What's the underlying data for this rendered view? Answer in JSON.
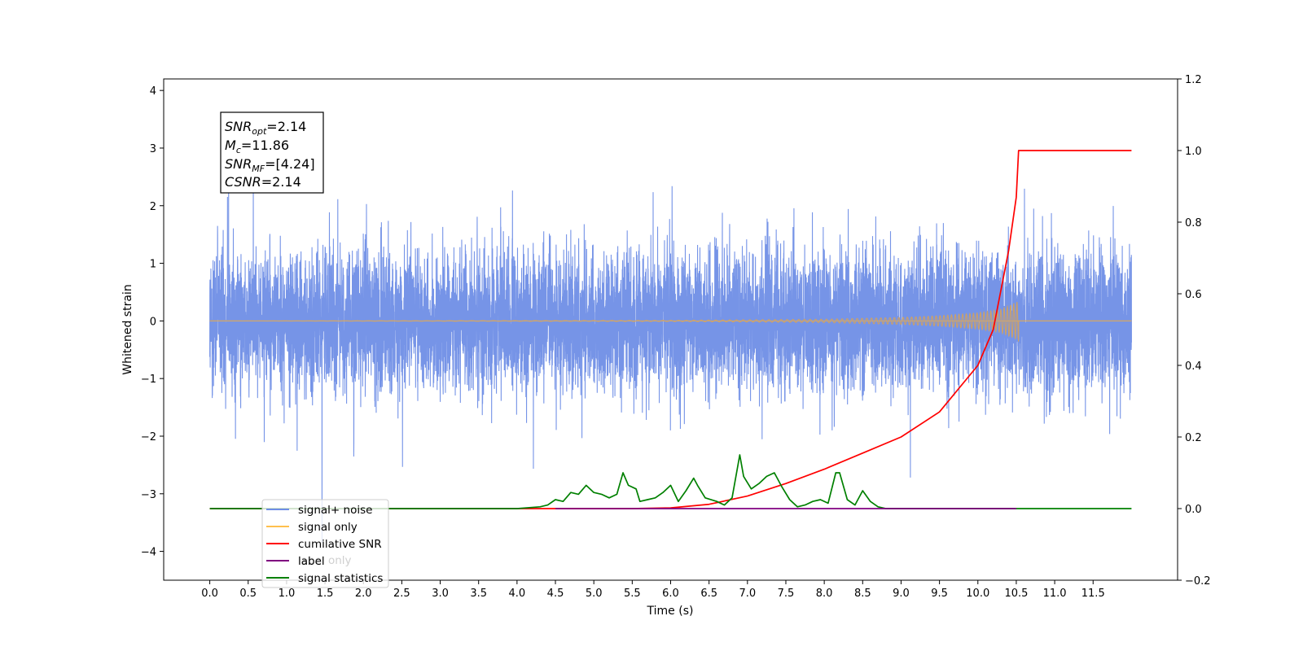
{
  "chart_data": {
    "type": "line",
    "title": "",
    "xlabel": "Time (s)",
    "ylabel": "Whitened strain",
    "xlim": [
      -0.6,
      12.6
    ],
    "ylim": [
      -4.5,
      4.2
    ],
    "y2lim": [
      -0.2,
      1.2
    ],
    "x_ticks": [
      "0.0",
      "0.5",
      "1.0",
      "1.5",
      "2.0",
      "2.5",
      "3.0",
      "3.5",
      "4.0",
      "4.5",
      "5.0",
      "5.5",
      "6.0",
      "6.5",
      "7.0",
      "7.5",
      "8.0",
      "8.5",
      "9.0",
      "9.5",
      "10.0",
      "10.5",
      "11.0",
      "11.5"
    ],
    "y_ticks": [
      "−4",
      "−3",
      "−2",
      "−1",
      "0",
      "1",
      "2",
      "3",
      "4"
    ],
    "y2_ticks": [
      "−0.2",
      "0.0",
      "0.2",
      "0.4",
      "0.6",
      "0.8",
      "1.0",
      "1.2"
    ],
    "grid": false,
    "annotation": {
      "lines": [
        {
          "var": "SNR",
          "sub": "opt",
          "value": "=2.14"
        },
        {
          "var": "M",
          "sub": "c",
          "value": "=11.86"
        },
        {
          "var": "SNR",
          "sub": "MF",
          "value": "=[4.24]"
        },
        {
          "var": "CSNR",
          "sub": "",
          "value": "=2.14"
        }
      ]
    },
    "legend": {
      "placement": "lower-left",
      "entries": [
        {
          "label": "signal+ noise",
          "color": "#6f8ee6"
        },
        {
          "label": "signal only",
          "color": "#ffc04d"
        },
        {
          "label": "cumilative SNR",
          "color": "#ff0000"
        },
        {
          "label": "label",
          "color": "#800080"
        },
        {
          "label": "signal statistics",
          "color": "#008000"
        }
      ],
      "hidden_text": "label only"
    },
    "series": [
      {
        "name": "signal+ noise",
        "axis": "left",
        "color": "#6f8ee6",
        "x_start": 0.0,
        "x_end": 12.0,
        "description_envelope": "dense noise, amplitude roughly ±2 with spikes to ±3.8"
      },
      {
        "name": "signal only",
        "axis": "left",
        "color": "#ffc04d",
        "chirp_end": 10.53,
        "envelope": {
          "x": [
            0,
            6,
            8,
            9,
            9.5,
            10,
            10.3,
            10.5,
            10.53
          ],
          "amp": [
            0.0,
            0.01,
            0.03,
            0.06,
            0.09,
            0.14,
            0.2,
            0.32,
            0.35
          ]
        }
      },
      {
        "name": "cumilative SNR",
        "axis": "right",
        "color": "#ff0000",
        "x": [
          0,
          5.5,
          6.0,
          6.5,
          7.0,
          7.5,
          8.0,
          8.5,
          9.0,
          9.5,
          10.0,
          10.2,
          10.4,
          10.5,
          10.53,
          10.55,
          12.0
        ],
        "y": [
          0.0,
          0.0,
          0.002,
          0.012,
          0.035,
          0.07,
          0.11,
          0.155,
          0.2,
          0.27,
          0.4,
          0.5,
          0.72,
          0.87,
          1.0,
          1.0,
          1.0
        ]
      },
      {
        "name": "label",
        "axis": "right",
        "color": "#800080",
        "x": [
          4.5,
          10.5
        ],
        "y": [
          0.0,
          0.0
        ]
      },
      {
        "name": "signal statistics",
        "axis": "right",
        "color": "#008000",
        "x": [
          0,
          3.5,
          4.0,
          4.3,
          4.4,
          4.5,
          4.6,
          4.7,
          4.8,
          4.9,
          5.0,
          5.1,
          5.2,
          5.3,
          5.38,
          5.45,
          5.55,
          5.6,
          5.7,
          5.8,
          5.9,
          6.0,
          6.1,
          6.2,
          6.3,
          6.35,
          6.45,
          6.6,
          6.7,
          6.8,
          6.9,
          6.95,
          7.05,
          7.15,
          7.25,
          7.35,
          7.45,
          7.55,
          7.65,
          7.75,
          7.85,
          7.95,
          8.05,
          8.15,
          8.2,
          8.3,
          8.4,
          8.5,
          8.6,
          8.7,
          8.8,
          8.9,
          9.0,
          9.2,
          12.0
        ],
        "y": [
          0.0,
          0.0,
          0.0,
          0.005,
          0.01,
          0.025,
          0.02,
          0.045,
          0.04,
          0.065,
          0.045,
          0.04,
          0.03,
          0.04,
          0.1,
          0.065,
          0.055,
          0.02,
          0.025,
          0.03,
          0.045,
          0.065,
          0.02,
          0.05,
          0.085,
          0.065,
          0.03,
          0.02,
          0.01,
          0.03,
          0.15,
          0.09,
          0.055,
          0.07,
          0.09,
          0.1,
          0.06,
          0.025,
          0.005,
          0.01,
          0.02,
          0.025,
          0.015,
          0.1,
          0.1,
          0.025,
          0.01,
          0.05,
          0.02,
          0.005,
          0.0,
          0.0,
          0.0,
          0.0,
          0.0
        ]
      }
    ]
  }
}
